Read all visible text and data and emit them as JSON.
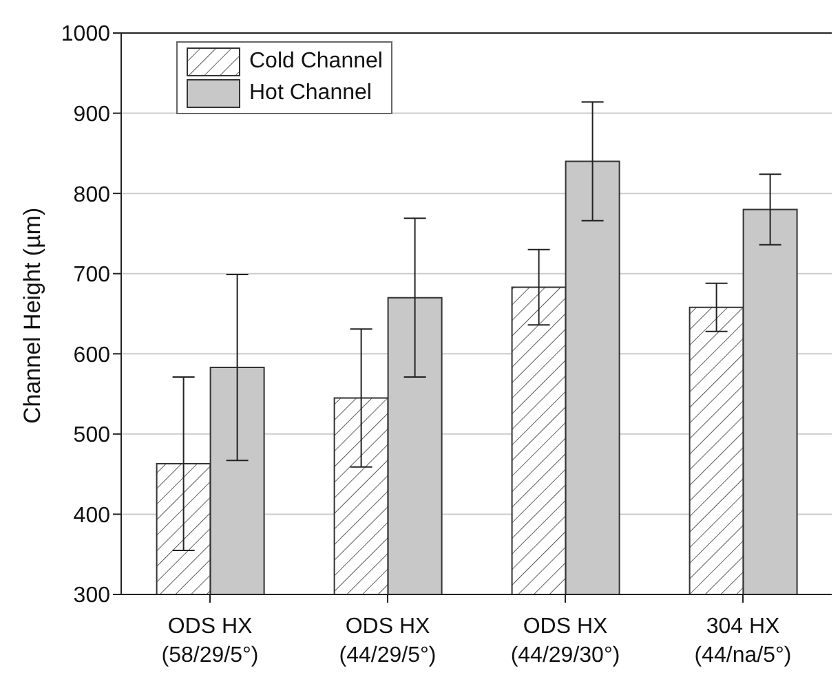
{
  "chart_data": {
    "type": "bar",
    "ylabel": "Channel Height (µm)",
    "categories": [
      "ODS HX\n(58/29/5°)",
      "ODS HX\n(44/29/5°)",
      "ODS HX\n(44/29/30°)",
      "304 HX\n(44/na/5°)"
    ],
    "series": [
      {
        "name": "Cold Channel",
        "color": "#333333",
        "values": [
          463,
          545,
          683,
          658
        ],
        "errors": [
          108,
          86,
          47,
          30
        ]
      },
      {
        "name": "Hot Channel",
        "color": "#c8c8c8",
        "values": [
          583,
          670,
          840,
          780
        ],
        "errors": [
          116,
          99,
          74,
          44
        ]
      }
    ],
    "ylim": [
      300,
      1000
    ],
    "yticks": [
      300,
      400,
      500,
      600,
      700,
      800,
      900,
      1000
    ],
    "grid": "y",
    "legend": "top left"
  }
}
